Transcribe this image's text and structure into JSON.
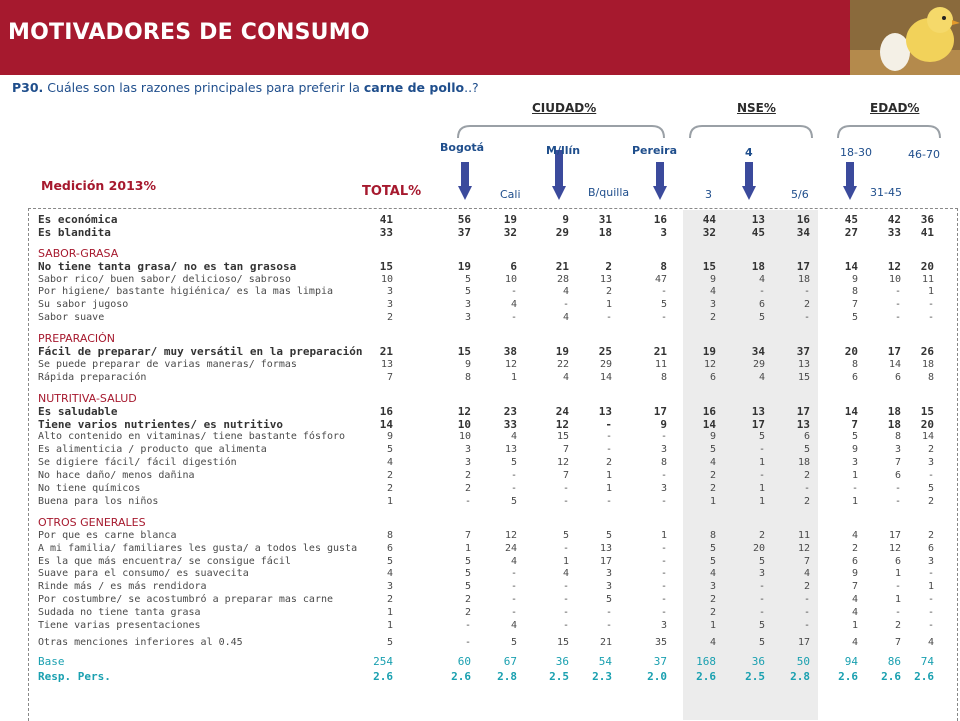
{
  "title": "MOTIVADORES DE CONSUMO",
  "question": {
    "code": "P30.",
    "text_before": "Cuáles son las razones principales para preferir la ",
    "highlight": "carne de pollo",
    "text_after": "..?"
  },
  "groups": {
    "ciudad": "CIUDAD%",
    "nse": "NSE%",
    "edad": "EDAD%"
  },
  "measurement": "Medición 2013%",
  "columns": {
    "total": "TOTAL%",
    "bogota": "Bogotá",
    "cali": "Cali",
    "medellin": "M/llín",
    "barranquilla": "B/quilla",
    "pereira": "Pereira",
    "nse3": "3",
    "nse4": "4",
    "nse56": "5/6",
    "age1830": "18-30",
    "age3145": "31-45",
    "age4670": "46-70"
  },
  "colors": {
    "banner": "#a6192e",
    "accent": "#a6192e",
    "blue": "#1f4e8c",
    "teal": "#1aa0b0",
    "arrow": "#3b4a9c"
  },
  "rows": [
    {
      "type": "main",
      "label": "Es económica",
      "values": [
        "41",
        "56",
        "19",
        "9",
        "31",
        "16",
        "44",
        "13",
        "16",
        "45",
        "42",
        "36"
      ]
    },
    {
      "type": "main",
      "label": "Es blandita",
      "values": [
        "33",
        "37",
        "32",
        "29",
        "18",
        "3",
        "32",
        "45",
        "34",
        "27",
        "33",
        "41"
      ]
    },
    {
      "type": "head",
      "label": "SABOR-GRASA",
      "values": []
    },
    {
      "type": "main",
      "label": "No tiene tanta grasa/ no es tan grasosa",
      "values": [
        "15",
        "19",
        "6",
        "21",
        "2",
        "8",
        "15",
        "18",
        "17",
        "14",
        "12",
        "20"
      ]
    },
    {
      "type": "sub",
      "label": "Sabor rico/ buen sabor/ delicioso/ sabroso",
      "values": [
        "10",
        "5",
        "10",
        "28",
        "13",
        "47",
        "9",
        "4",
        "18",
        "9",
        "10",
        "11"
      ]
    },
    {
      "type": "sub",
      "label": "Por higiene/ bastante higiénica/ es la mas limpia",
      "values": [
        "3",
        "5",
        "-",
        "4",
        "2",
        "-",
        "4",
        "-",
        "-",
        "8",
        "-",
        "1"
      ]
    },
    {
      "type": "sub",
      "label": "Su sabor jugoso",
      "values": [
        "3",
        "3",
        "4",
        "-",
        "1",
        "5",
        "3",
        "6",
        "2",
        "7",
        "-",
        "-"
      ]
    },
    {
      "type": "sub",
      "label": "Sabor suave",
      "values": [
        "2",
        "3",
        "-",
        "4",
        "-",
        "-",
        "2",
        "5",
        "-",
        "5",
        "-",
        "-"
      ]
    },
    {
      "type": "head",
      "label": "PREPARACIÓN",
      "values": []
    },
    {
      "type": "main",
      "label": "Fácil de preparar/ muy versátil en la preparación",
      "values": [
        "21",
        "15",
        "38",
        "19",
        "25",
        "21",
        "19",
        "34",
        "37",
        "20",
        "17",
        "26"
      ]
    },
    {
      "type": "sub",
      "label": "Se puede preparar de varias maneras/ formas",
      "values": [
        "13",
        "9",
        "12",
        "22",
        "29",
        "11",
        "12",
        "29",
        "13",
        "8",
        "14",
        "18"
      ]
    },
    {
      "type": "sub",
      "label": "Rápida preparación",
      "values": [
        "7",
        "8",
        "1",
        "4",
        "14",
        "8",
        "6",
        "4",
        "15",
        "6",
        "6",
        "8"
      ]
    },
    {
      "type": "head",
      "label": "NUTRITIVA-SALUD",
      "values": []
    },
    {
      "type": "main",
      "label": "Es saludable",
      "values": [
        "16",
        "12",
        "23",
        "24",
        "13",
        "17",
        "16",
        "13",
        "17",
        "14",
        "18",
        "15"
      ]
    },
    {
      "type": "main",
      "label": "Tiene varios nutrientes/ es nutritivo",
      "values": [
        "14",
        "10",
        "33",
        "12",
        "-",
        "9",
        "14",
        "17",
        "13",
        "7",
        "18",
        "20"
      ]
    },
    {
      "type": "sub",
      "label": "Alto contenido en vitaminas/ tiene bastante fósforo",
      "values": [
        "9",
        "10",
        "4",
        "15",
        "-",
        "-",
        "9",
        "5",
        "6",
        "5",
        "8",
        "14"
      ]
    },
    {
      "type": "sub",
      "label": "Es alimenticia / producto que alimenta",
      "values": [
        "5",
        "3",
        "13",
        "7",
        "-",
        "3",
        "5",
        "-",
        "5",
        "9",
        "3",
        "2"
      ]
    },
    {
      "type": "sub",
      "label": "Se digiere fácil/ fácil digestión",
      "values": [
        "4",
        "3",
        "5",
        "12",
        "2",
        "8",
        "4",
        "1",
        "18",
        "3",
        "7",
        "3"
      ]
    },
    {
      "type": "sub",
      "label": "No hace daño/ menos dañina",
      "values": [
        "2",
        "2",
        "-",
        "7",
        "1",
        "-",
        "2",
        "-",
        "2",
        "1",
        "6",
        "-"
      ]
    },
    {
      "type": "sub",
      "label": "No tiene químicos",
      "values": [
        "2",
        "2",
        "-",
        "-",
        "1",
        "3",
        "2",
        "1",
        "-",
        "-",
        "-",
        "5"
      ]
    },
    {
      "type": "sub",
      "label": "Buena para los niños",
      "values": [
        "1",
        "-",
        "5",
        "-",
        "-",
        "-",
        "1",
        "1",
        "2",
        "1",
        "-",
        "2"
      ]
    },
    {
      "type": "head",
      "label": "OTROS GENERALES",
      "values": []
    },
    {
      "type": "sub",
      "label": "Por que es carne blanca",
      "values": [
        "8",
        "7",
        "12",
        "5",
        "5",
        "1",
        "8",
        "2",
        "11",
        "4",
        "17",
        "2"
      ]
    },
    {
      "type": "sub",
      "label": "A mi familia/ familiares les gusta/ a todos les gusta",
      "values": [
        "6",
        "1",
        "24",
        "-",
        "13",
        "-",
        "5",
        "20",
        "12",
        "2",
        "12",
        "6"
      ]
    },
    {
      "type": "sub",
      "label": "Es la que más encuentra/ se consigue fácil",
      "values": [
        "5",
        "5",
        "4",
        "1",
        "17",
        "-",
        "5",
        "5",
        "7",
        "6",
        "6",
        "3"
      ]
    },
    {
      "type": "sub",
      "label": "Suave para el consumo/ es suavecita",
      "values": [
        "4",
        "5",
        "-",
        "4",
        "3",
        "-",
        "4",
        "3",
        "4",
        "9",
        "1",
        "-"
      ]
    },
    {
      "type": "sub",
      "label": "Rinde más / es más rendidora",
      "values": [
        "3",
        "5",
        "-",
        "-",
        "3",
        "-",
        "3",
        "-",
        "2",
        "7",
        "-",
        "1"
      ]
    },
    {
      "type": "sub",
      "label": "Por costumbre/ se acostumbró a preparar mas carne",
      "values": [
        "2",
        "2",
        "-",
        "-",
        "5",
        "-",
        "2",
        "-",
        "-",
        "4",
        "1",
        "-"
      ]
    },
    {
      "type": "sub",
      "label": "Sudada no tiene tanta grasa",
      "values": [
        "1",
        "2",
        "-",
        "-",
        "-",
        "-",
        "2",
        "-",
        "-",
        "4",
        "-",
        "-"
      ]
    },
    {
      "type": "sub",
      "label": "Tiene varias presentaciones",
      "values": [
        "1",
        "-",
        "4",
        "-",
        "-",
        "3",
        "1",
        "5",
        "-",
        "1",
        "2",
        "-"
      ]
    },
    {
      "type": "gap",
      "label": "",
      "values": []
    },
    {
      "type": "sub",
      "label": "Otras menciones inferiores al 0.45",
      "values": [
        "5",
        "-",
        "5",
        "15",
        "21",
        "35",
        "4",
        "5",
        "17",
        "4",
        "7",
        "4"
      ]
    },
    {
      "type": "gap",
      "label": "",
      "values": []
    },
    {
      "type": "base",
      "label": "Base",
      "values": [
        "254",
        "60",
        "67",
        "36",
        "54",
        "37",
        "168",
        "36",
        "50",
        "94",
        "86",
        "74"
      ]
    },
    {
      "type": "base bold",
      "label": "Resp. Pers.",
      "values": [
        "2.6",
        "2.6",
        "2.8",
        "2.5",
        "2.3",
        "2.0",
        "2.6",
        "2.5",
        "2.8",
        "2.6",
        "2.6",
        "2.6"
      ]
    }
  ]
}
